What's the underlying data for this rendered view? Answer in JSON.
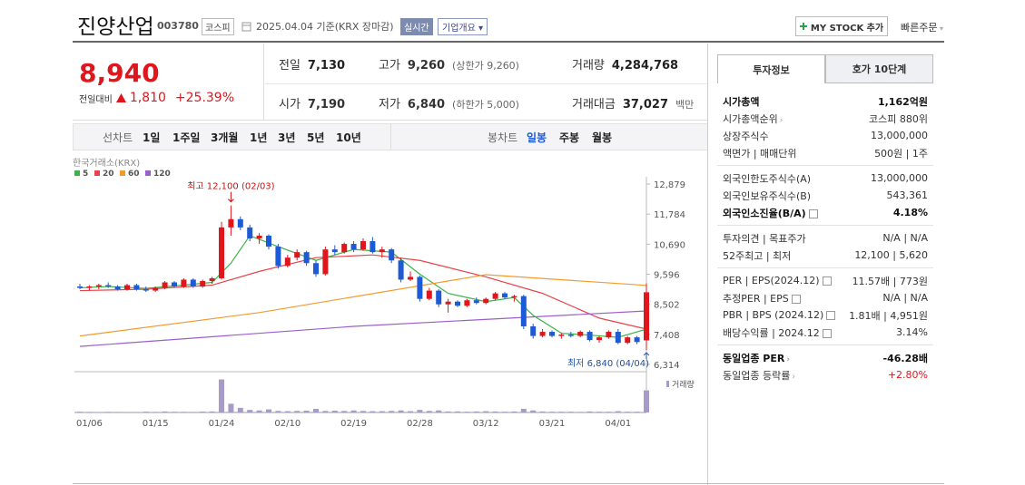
{
  "header": {
    "title": "진양산업",
    "code": "003780",
    "market": "코스피",
    "date": "2025.04.04",
    "basis": "기준(KRX 장마감)",
    "realtime": "실시간",
    "overview": "기업개요",
    "mystock": "MY STOCK 추가",
    "quick": "빠른주문"
  },
  "price": {
    "current": "8,940",
    "change_label": "전일대비",
    "change": "1,810",
    "rate": "+25.39%"
  },
  "summary": [
    [
      {
        "label": "전일",
        "value": "7,130"
      },
      {
        "label": "고가",
        "value": "9,260",
        "note": "(상한가 9,260)",
        "color": "up"
      },
      {
        "label": "거래량",
        "value": "4,284,768"
      }
    ],
    [
      {
        "label": "시가",
        "value": "7,190",
        "color": "up"
      },
      {
        "label": "저가",
        "value": "6,840",
        "note": "(하한가 5,000)",
        "color": "down"
      },
      {
        "label": "거래대금",
        "value": "37,027",
        "note": "백만"
      }
    ]
  ],
  "tabs": {
    "line_label": "선차트",
    "periods": [
      "1일",
      "1주일",
      "3개월",
      "1년",
      "3년",
      "5년",
      "10년"
    ],
    "candle_label": "봉차트",
    "candle_periods": [
      "일봉",
      "주봉",
      "월봉"
    ],
    "active_candle": 0
  },
  "side": {
    "tabs": [
      "투자정보",
      "호가 10단계"
    ],
    "active_tab": 0,
    "groups": [
      [
        {
          "label": "시가총액",
          "value": "1,162억원",
          "bold": true
        },
        {
          "label": "시가총액순위",
          "value": "코스피 880위",
          "link": true
        },
        {
          "label": "상장주식수",
          "value": "13,000,000"
        },
        {
          "label": "액면가 | 매매단위",
          "value": "500원 | 1주"
        }
      ],
      [
        {
          "label": "외국인한도주식수(A)",
          "value": "13,000,000"
        },
        {
          "label": "외국인보유주식수(B)",
          "value": "543,361"
        },
        {
          "label": "외국인소진율(B/A)",
          "value": "4.18%",
          "bold": true,
          "help": true
        }
      ],
      [
        {
          "label": "투자의견 | 목표주가",
          "value": "N/A | N/A"
        },
        {
          "label": "52주최고 | 최저",
          "value": "12,100 | 5,620"
        }
      ],
      [
        {
          "label": "PER | EPS(2024.12)",
          "value": "11.57배 | 773원",
          "help": true
        },
        {
          "label": "추정PER | EPS",
          "value": "N/A | N/A",
          "help": true
        },
        {
          "label": "PBR | BPS (2024.12)",
          "value": "1.81배 | 4,951원",
          "help": true
        },
        {
          "label": "배당수익률 | 2024.12",
          "value": "3.14%",
          "help": true
        }
      ],
      [
        {
          "label": "동일업종 PER",
          "value": "-46.28배",
          "bold": true,
          "link": true
        },
        {
          "label": "동일업종 등락률",
          "value": "+2.80%",
          "link": true,
          "color": "up"
        }
      ]
    ]
  },
  "chart_data": {
    "type": "candlestick",
    "source": "한국거래소(KRX)",
    "volume_label": "거래량",
    "high_label": "최고 12,100 (02/03)",
    "low_label": "최저 6,840 (04/04)",
    "up_color": "#e0161d",
    "down_color": "#1d5bd6",
    "volume_color": "#a79cc8",
    "ylim": [
      6314,
      12879
    ],
    "yticks": [
      {
        "value": 12879,
        "label": "12,879"
      },
      {
        "value": 11784,
        "label": "11,784"
      },
      {
        "value": 10690,
        "label": "10,690"
      },
      {
        "value": 9596,
        "label": "9,596"
      },
      {
        "value": 8502,
        "label": "8,502"
      },
      {
        "value": 7408,
        "label": "7,408"
      },
      {
        "value": 6314,
        "label": "6,314"
      }
    ],
    "volume_ylim": [
      0,
      6500000
    ],
    "categories": [
      null,
      "01/06",
      null,
      null,
      null,
      null,
      null,
      null,
      "01/15",
      null,
      null,
      null,
      null,
      null,
      null,
      "01/24",
      null,
      null,
      null,
      null,
      null,
      null,
      "02/10",
      null,
      null,
      null,
      null,
      null,
      null,
      "02/19",
      null,
      null,
      null,
      null,
      null,
      null,
      "02/28",
      null,
      null,
      null,
      null,
      null,
      null,
      "03/12",
      null,
      null,
      null,
      null,
      null,
      null,
      "03/21",
      null,
      null,
      null,
      null,
      null,
      null,
      "04/01",
      null,
      null,
      null
    ],
    "candles": [
      [
        9150,
        9250,
        9050,
        9100
      ],
      [
        9100,
        9200,
        9000,
        9150
      ],
      [
        9150,
        9250,
        9050,
        9200
      ],
      [
        9200,
        9300,
        9100,
        9150
      ],
      [
        9150,
        9200,
        9000,
        9050
      ],
      [
        9050,
        9250,
        9000,
        9200
      ],
      [
        9200,
        9250,
        9000,
        9050
      ],
      [
        9050,
        9150,
        8950,
        9000
      ],
      [
        9000,
        9150,
        8950,
        9100
      ],
      [
        9100,
        9350,
        9050,
        9300
      ],
      [
        9300,
        9350,
        9100,
        9150
      ],
      [
        9150,
        9450,
        9100,
        9400
      ],
      [
        9400,
        9450,
        9100,
        9150
      ],
      [
        9150,
        9400,
        9100,
        9350
      ],
      [
        9350,
        9500,
        9250,
        9450
      ],
      [
        9450,
        11500,
        9400,
        11300
      ],
      [
        11300,
        12100,
        11000,
        11600
      ],
      [
        11600,
        11700,
        11200,
        11300
      ],
      [
        11300,
        11400,
        10800,
        10900
      ],
      [
        10900,
        11100,
        10700,
        11000
      ],
      [
        11000,
        11050,
        10500,
        10600
      ],
      [
        10600,
        10700,
        9800,
        9900
      ],
      [
        9900,
        10300,
        9850,
        10200
      ],
      [
        10200,
        10500,
        10100,
        10400
      ],
      [
        10400,
        10450,
        9900,
        10000
      ],
      [
        10000,
        10100,
        9500,
        9600
      ],
      [
        9600,
        10600,
        9550,
        10500
      ],
      [
        10500,
        10650,
        10300,
        10400
      ],
      [
        10400,
        10750,
        10350,
        10700
      ],
      [
        10700,
        10800,
        10400,
        10500
      ],
      [
        10500,
        10900,
        10450,
        10800
      ],
      [
        10800,
        10950,
        10350,
        10400
      ],
      [
        10400,
        10600,
        10200,
        10500
      ],
      [
        10500,
        10550,
        10000,
        10100
      ],
      [
        10100,
        10200,
        9300,
        9400
      ],
      [
        9400,
        9700,
        9350,
        9500
      ],
      [
        9500,
        9550,
        8600,
        8700
      ],
      [
        8700,
        9100,
        8650,
        9000
      ],
      [
        9000,
        9050,
        8400,
        8500
      ],
      [
        8500,
        8700,
        8200,
        8600
      ],
      [
        8600,
        8650,
        8400,
        8450
      ],
      [
        8450,
        8700,
        8400,
        8650
      ],
      [
        8650,
        8750,
        8500,
        8550
      ],
      [
        8550,
        8750,
        8500,
        8700
      ],
      [
        8700,
        8950,
        8650,
        8900
      ],
      [
        8900,
        8950,
        8700,
        8750
      ],
      [
        8750,
        8850,
        8600,
        8800
      ],
      [
        8800,
        8850,
        7600,
        7700
      ],
      [
        7700,
        7800,
        7250,
        7350
      ],
      [
        7350,
        7600,
        7300,
        7500
      ],
      [
        7500,
        7550,
        7300,
        7350
      ],
      [
        7350,
        7450,
        7250,
        7400
      ],
      [
        7400,
        7500,
        7300,
        7350
      ],
      [
        7350,
        7550,
        7300,
        7500
      ],
      [
        7500,
        7550,
        7150,
        7200
      ],
      [
        7200,
        7350,
        7100,
        7300
      ],
      [
        7300,
        7550,
        7250,
        7500
      ],
      [
        7500,
        7600,
        7050,
        7100
      ],
      [
        7100,
        7350,
        7050,
        7300
      ],
      [
        7300,
        7350,
        7050,
        7130
      ],
      [
        7190,
        9260,
        6840,
        8940
      ]
    ],
    "volume": [
      150000,
      120000,
      100000,
      130000,
      110000,
      90000,
      100000,
      160000,
      120000,
      200000,
      140000,
      130000,
      110000,
      180000,
      200000,
      6400000,
      1700000,
      900000,
      500000,
      400000,
      600000,
      300000,
      250000,
      300000,
      350000,
      700000,
      300000,
      350000,
      300000,
      400000,
      300000,
      250000,
      250000,
      300000,
      400000,
      250000,
      500000,
      300000,
      400000,
      200000,
      200000,
      150000,
      200000,
      250000,
      200000,
      150000,
      200000,
      700000,
      400000,
      200000,
      150000,
      150000,
      150000,
      120000,
      200000,
      150000,
      150000,
      250000,
      150000,
      150000,
      4284768
    ],
    "series": [
      {
        "name": "5",
        "color": "#3cb34a",
        "x": [
          0,
          3,
          7,
          11,
          14,
          16,
          18,
          21,
          25,
          29,
          33,
          36,
          39,
          43,
          46,
          48,
          51,
          54,
          57,
          60
        ],
        "values": [
          9100,
          9150,
          9080,
          9200,
          9300,
          10000,
          11000,
          10600,
          10100,
          10500,
          10400,
          9600,
          8900,
          8600,
          8750,
          8100,
          7450,
          7380,
          7300,
          7600
        ]
      },
      {
        "name": "20",
        "color": "#e8434a",
        "x": [
          0,
          7,
          14,
          19,
          25,
          31,
          36,
          43,
          49,
          55,
          60
        ],
        "values": [
          9000,
          9050,
          9200,
          9700,
          10200,
          10300,
          10100,
          9500,
          8900,
          8000,
          7600
        ]
      },
      {
        "name": "60",
        "color": "#f29a2e",
        "x": [
          0,
          19,
          43,
          60
        ],
        "values": [
          7350,
          8200,
          9580,
          9190
        ]
      },
      {
        "name": "120",
        "color": "#9b5fc9",
        "x": [
          0,
          29,
          60
        ],
        "values": [
          6970,
          7700,
          8260
        ]
      }
    ]
  }
}
